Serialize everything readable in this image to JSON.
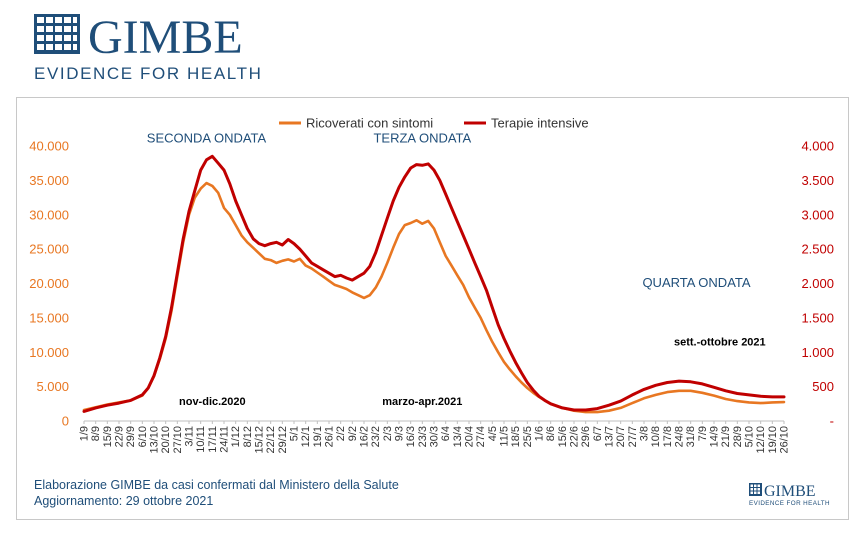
{
  "brand": {
    "name": "GIMBE",
    "tagline": "EVIDENCE FOR HEALTH",
    "primary_color": "#1f4e79"
  },
  "footer": {
    "line1": "Elaborazione GIMBE da casi confermati dal Ministero della Salute",
    "line2": "Aggiornamento: 29 ottobre 2021"
  },
  "chart_data": {
    "type": "line",
    "title": "",
    "legend_position": "top-center",
    "x_tick_labels": [
      "1/9",
      "8/9",
      "15/9",
      "22/9",
      "29/9",
      "6/10",
      "13/10",
      "20/10",
      "27/10",
      "3/11",
      "10/11",
      "17/11",
      "24/11",
      "1/12",
      "8/12",
      "15/12",
      "22/12",
      "29/12",
      "5/1",
      "12/1",
      "19/1",
      "26/1",
      "2/2",
      "9/2",
      "16/2",
      "23/2",
      "2/3",
      "9/3",
      "16/3",
      "23/3",
      "30/3",
      "6/4",
      "13/4",
      "20/4",
      "27/4",
      "4/5",
      "11/5",
      "18/5",
      "25/5",
      "1/6",
      "8/6",
      "15/6",
      "22/6",
      "29/6",
      "6/7",
      "13/7",
      "20/7",
      "27/7",
      "3/8",
      "10/8",
      "17/8",
      "24/8",
      "31/8",
      "7/9",
      "14/9",
      "21/9",
      "28/9",
      "5/10",
      "12/10",
      "19/10",
      "26/10"
    ],
    "y_left": {
      "min": 0,
      "max": 40000,
      "ticks": [
        "0",
        "5.000",
        "10.000",
        "15.000",
        "20.000",
        "25.000",
        "30.000",
        "35.000",
        "40.000"
      ],
      "color": "#e87722"
    },
    "y_right": {
      "min": 0,
      "max": 4000,
      "ticks": [
        "-",
        "500",
        "1.000",
        "1.500",
        "2.000",
        "2.500",
        "3.000",
        "3.500",
        "4.000"
      ],
      "color": "#c00000"
    },
    "series": [
      {
        "name": "Ricoverati con sintomi",
        "axis": "left",
        "color": "#e87722",
        "points": [
          [
            0,
            1600
          ],
          [
            1,
            2000
          ],
          [
            2,
            2400
          ],
          [
            3,
            2700
          ],
          [
            4,
            3000
          ],
          [
            5,
            3700
          ],
          [
            5.5,
            4800
          ],
          [
            6,
            6500
          ],
          [
            6.5,
            9000
          ],
          [
            7,
            12000
          ],
          [
            7.5,
            16000
          ],
          [
            8,
            21000
          ],
          [
            8.5,
            26000
          ],
          [
            9,
            30000
          ],
          [
            9.5,
            32500
          ],
          [
            10,
            33800
          ],
          [
            10.5,
            34600
          ],
          [
            11,
            34200
          ],
          [
            11.5,
            33200
          ],
          [
            12,
            31000
          ],
          [
            12.5,
            30000
          ],
          [
            13,
            28500
          ],
          [
            13.5,
            27000
          ],
          [
            14,
            26000
          ],
          [
            14.5,
            25200
          ],
          [
            15,
            24400
          ],
          [
            15.5,
            23600
          ],
          [
            16,
            23400
          ],
          [
            16.5,
            23000
          ],
          [
            17,
            23300
          ],
          [
            17.5,
            23500
          ],
          [
            18,
            23200
          ],
          [
            18.5,
            23600
          ],
          [
            19,
            22600
          ],
          [
            19.5,
            22200
          ],
          [
            20,
            21600
          ],
          [
            20.5,
            21000
          ],
          [
            21,
            20400
          ],
          [
            21.5,
            19800
          ],
          [
            22,
            19500
          ],
          [
            22.5,
            19200
          ],
          [
            23,
            18700
          ],
          [
            23.5,
            18300
          ],
          [
            24,
            17900
          ],
          [
            24.5,
            18300
          ],
          [
            25,
            19400
          ],
          [
            25.5,
            21000
          ],
          [
            26,
            23000
          ],
          [
            26.5,
            25200
          ],
          [
            27,
            27200
          ],
          [
            27.5,
            28500
          ],
          [
            28,
            28800
          ],
          [
            28.5,
            29200
          ],
          [
            29,
            28700
          ],
          [
            29.5,
            29100
          ],
          [
            30,
            28000
          ],
          [
            30.5,
            26000
          ],
          [
            31,
            24000
          ],
          [
            31.5,
            22600
          ],
          [
            32,
            21200
          ],
          [
            32.5,
            19800
          ],
          [
            33,
            18000
          ],
          [
            33.5,
            16500
          ],
          [
            34,
            15000
          ],
          [
            34.5,
            13200
          ],
          [
            35,
            11500
          ],
          [
            35.5,
            10000
          ],
          [
            36,
            8600
          ],
          [
            36.5,
            7500
          ],
          [
            37,
            6500
          ],
          [
            37.5,
            5600
          ],
          [
            38,
            4800
          ],
          [
            38.5,
            4100
          ],
          [
            39,
            3500
          ],
          [
            39.5,
            3000
          ],
          [
            40,
            2500
          ],
          [
            41,
            1900
          ],
          [
            42,
            1500
          ],
          [
            43,
            1300
          ],
          [
            44,
            1300
          ],
          [
            45,
            1500
          ],
          [
            46,
            1900
          ],
          [
            47,
            2600
          ],
          [
            48,
            3300
          ],
          [
            49,
            3800
          ],
          [
            50,
            4200
          ],
          [
            51,
            4400
          ],
          [
            52,
            4400
          ],
          [
            53,
            4100
          ],
          [
            54,
            3700
          ],
          [
            55,
            3200
          ],
          [
            56,
            2900
          ],
          [
            57,
            2700
          ],
          [
            58,
            2600
          ],
          [
            59,
            2700
          ],
          [
            60,
            2750
          ]
        ]
      },
      {
        "name": "Terapie intensive",
        "axis": "right",
        "color": "#c00000",
        "points": [
          [
            0,
            140
          ],
          [
            1,
            190
          ],
          [
            2,
            230
          ],
          [
            3,
            260
          ],
          [
            4,
            300
          ],
          [
            5,
            380
          ],
          [
            5.5,
            480
          ],
          [
            6,
            660
          ],
          [
            6.5,
            920
          ],
          [
            7,
            1230
          ],
          [
            7.5,
            1650
          ],
          [
            8,
            2150
          ],
          [
            8.5,
            2650
          ],
          [
            9,
            3050
          ],
          [
            9.5,
            3350
          ],
          [
            10,
            3650
          ],
          [
            10.5,
            3800
          ],
          [
            11,
            3850
          ],
          [
            11.5,
            3750
          ],
          [
            12,
            3650
          ],
          [
            12.5,
            3450
          ],
          [
            13,
            3200
          ],
          [
            13.5,
            3000
          ],
          [
            14,
            2800
          ],
          [
            14.5,
            2650
          ],
          [
            15,
            2580
          ],
          [
            15.5,
            2550
          ],
          [
            16,
            2580
          ],
          [
            16.5,
            2600
          ],
          [
            17,
            2560
          ],
          [
            17.5,
            2640
          ],
          [
            18,
            2580
          ],
          [
            18.5,
            2500
          ],
          [
            19,
            2400
          ],
          [
            19.5,
            2300
          ],
          [
            20,
            2250
          ],
          [
            20.5,
            2200
          ],
          [
            21,
            2150
          ],
          [
            21.5,
            2100
          ],
          [
            22,
            2120
          ],
          [
            22.5,
            2080
          ],
          [
            23,
            2050
          ],
          [
            23.5,
            2100
          ],
          [
            24,
            2150
          ],
          [
            24.5,
            2250
          ],
          [
            25,
            2450
          ],
          [
            25.5,
            2700
          ],
          [
            26,
            2950
          ],
          [
            26.5,
            3200
          ],
          [
            27,
            3400
          ],
          [
            27.5,
            3550
          ],
          [
            28,
            3680
          ],
          [
            28.5,
            3730
          ],
          [
            29,
            3720
          ],
          [
            29.5,
            3740
          ],
          [
            30,
            3650
          ],
          [
            30.5,
            3500
          ],
          [
            31,
            3300
          ],
          [
            31.5,
            3100
          ],
          [
            32,
            2900
          ],
          [
            32.5,
            2700
          ],
          [
            33,
            2500
          ],
          [
            33.5,
            2300
          ],
          [
            34,
            2100
          ],
          [
            34.5,
            1900
          ],
          [
            35,
            1650
          ],
          [
            35.5,
            1400
          ],
          [
            36,
            1200
          ],
          [
            36.5,
            1020
          ],
          [
            37,
            850
          ],
          [
            37.5,
            700
          ],
          [
            38,
            560
          ],
          [
            38.5,
            450
          ],
          [
            39,
            360
          ],
          [
            39.5,
            300
          ],
          [
            40,
            250
          ],
          [
            41,
            190
          ],
          [
            42,
            160
          ],
          [
            43,
            160
          ],
          [
            44,
            180
          ],
          [
            45,
            230
          ],
          [
            46,
            290
          ],
          [
            47,
            380
          ],
          [
            48,
            460
          ],
          [
            49,
            520
          ],
          [
            50,
            560
          ],
          [
            51,
            580
          ],
          [
            52,
            570
          ],
          [
            53,
            540
          ],
          [
            54,
            490
          ],
          [
            55,
            440
          ],
          [
            56,
            400
          ],
          [
            57,
            380
          ],
          [
            58,
            360
          ],
          [
            59,
            350
          ],
          [
            60,
            350
          ]
        ]
      }
    ],
    "annotations": [
      {
        "name": "seconda-ondata-label",
        "text": "SECONDA ONDATA",
        "x": 10.5,
        "y": 40500,
        "color": "#1f4e79",
        "weight": "normal"
      },
      {
        "name": "terza-ondata-label",
        "text": "TERZA ONDATA",
        "x": 29,
        "y": 40500,
        "color": "#1f4e79",
        "weight": "normal"
      },
      {
        "name": "quarta-ondata-label",
        "text": "QUARTA ONDATA",
        "x": 52.5,
        "y": 19500,
        "color": "#1f4e79",
        "weight": "normal"
      },
      {
        "name": "nov-dic-label",
        "text": "nov-dic.2020",
        "x": 11,
        "y": 2300,
        "color": "#000000",
        "weight": "bold"
      },
      {
        "name": "marzo-apr-label",
        "text": "marzo-apr.2021",
        "x": 29,
        "y": 2300,
        "color": "#000000",
        "weight": "bold"
      },
      {
        "name": "sett-ottobre-label",
        "text": "sett.-ottobre 2021",
        "x": 54.5,
        "y": 11000,
        "color": "#000000",
        "weight": "bold"
      }
    ]
  }
}
